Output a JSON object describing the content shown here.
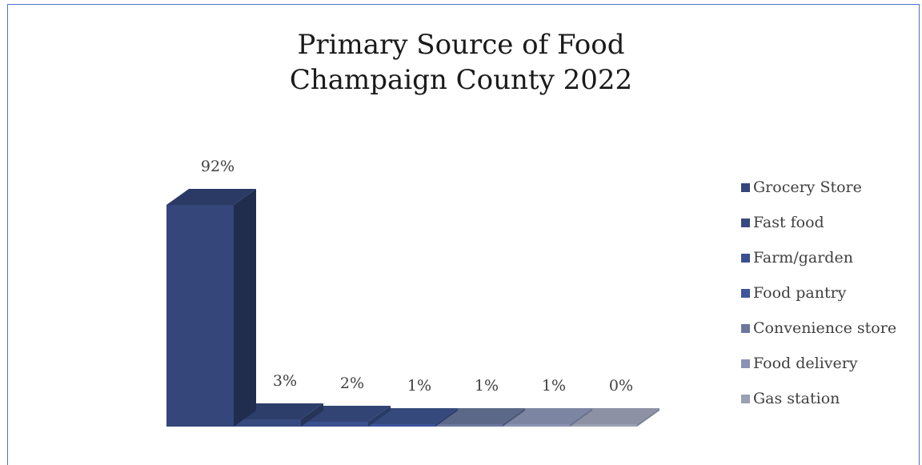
{
  "chart_data": {
    "type": "bar",
    "title": [
      "Primary Source of Food",
      "Champaign County 2022"
    ],
    "categories": [
      "Grocery Store",
      "Fast food",
      "Farm/garden",
      "Food pantry",
      "Convenience store",
      "Food delivery",
      "Gas station"
    ],
    "values": [
      92,
      3,
      2,
      1,
      1,
      1,
      0
    ],
    "data_labels": [
      "92%",
      "3%",
      "2%",
      "1%",
      "1%",
      "1%",
      "0%"
    ],
    "unit": "%",
    "three_d": true,
    "legend_position": "right",
    "grid": false,
    "colors": [
      "#34467a",
      "#374a80",
      "#3a5090",
      "#3e559c",
      "#6b789e",
      "#8a93b4",
      "#9aa0b2"
    ],
    "side_colors": [
      "#212d4f",
      "#263458",
      "#283a66",
      "#2c3f70",
      "#4c5676",
      "#6a7390",
      "#7d8396"
    ],
    "top_colors": [
      "#2b3a64",
      "#2e3e6a",
      "#314474",
      "#35497c",
      "#5c6888",
      "#7c85a2",
      "#8c92a4"
    ]
  }
}
